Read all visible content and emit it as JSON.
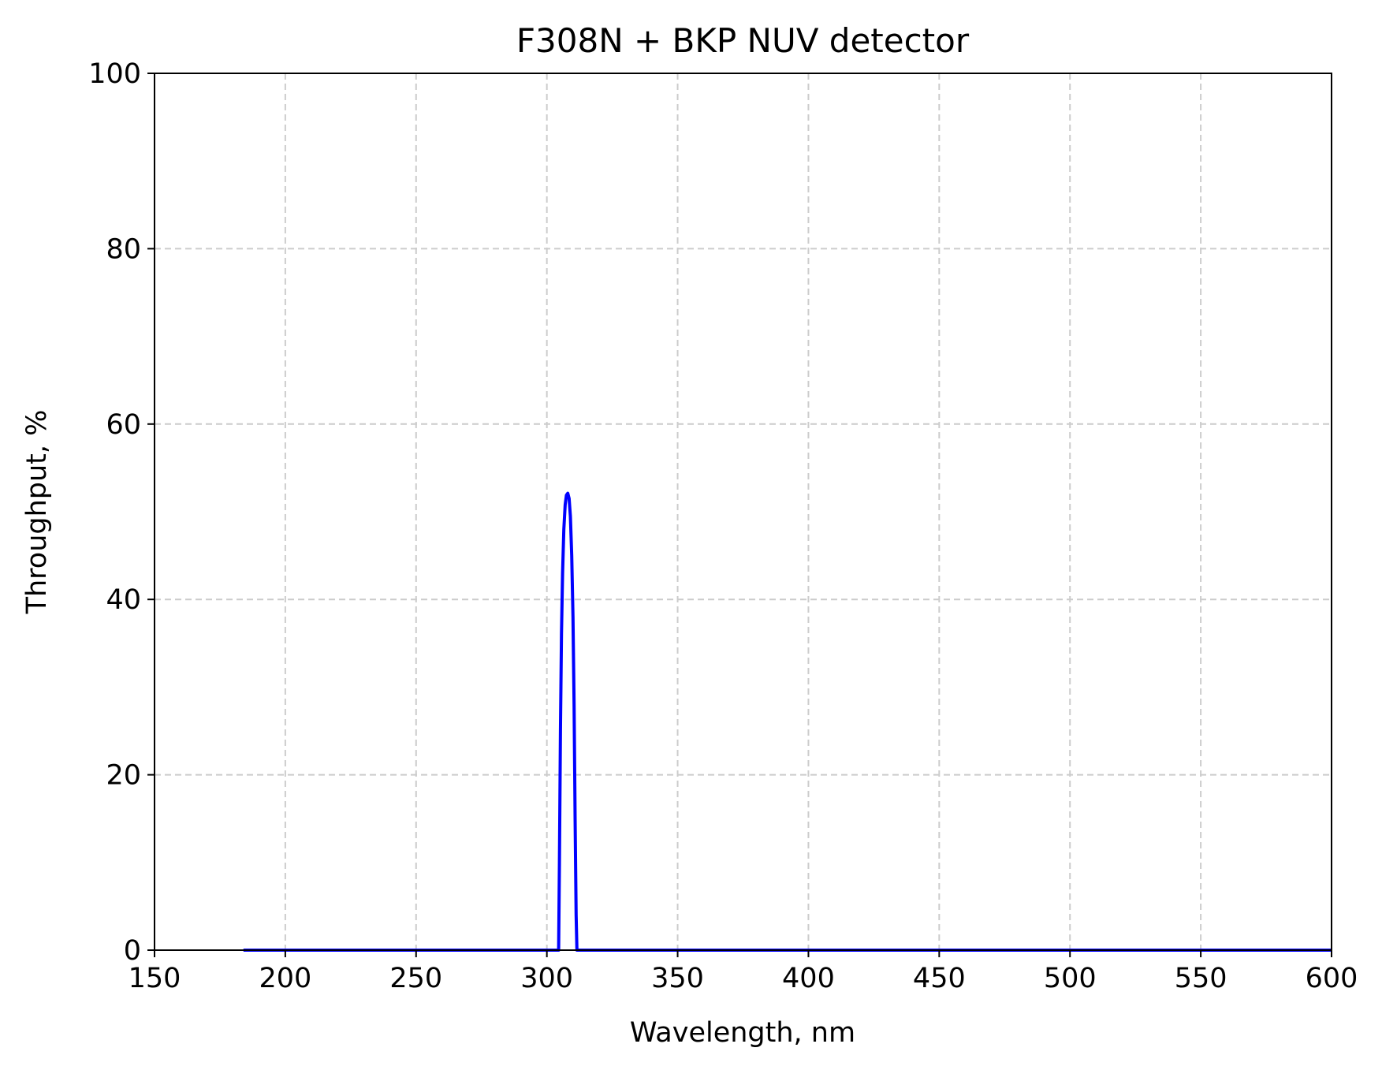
{
  "chart_data": {
    "type": "line",
    "title": "F308N + BKP NUV detector",
    "xlabel": "Wavelength, nm",
    "ylabel": "Throughput, %",
    "xlim": [
      150,
      600
    ],
    "ylim": [
      0,
      100
    ],
    "xticks": [
      "150",
      "200",
      "250",
      "300",
      "350",
      "400",
      "450",
      "500",
      "550",
      "600"
    ],
    "yticks": [
      "0",
      "20",
      "40",
      "60",
      "80",
      "100"
    ],
    "grid": true,
    "legend": "none",
    "series": [
      {
        "color": "#0000ff",
        "x": [
          184,
          300,
          304.5,
          304.8,
          305.2,
          305.6,
          306.0,
          306.5,
          307.0,
          307.5,
          308.0,
          308.5,
          309.0,
          309.5,
          310.0,
          310.4,
          310.8,
          311.2,
          311.5,
          320,
          600
        ],
        "y": [
          0,
          0,
          0,
          10,
          25,
          36,
          43,
          48,
          50.8,
          51.9,
          52.1,
          51.5,
          49.5,
          45,
          38,
          28,
          15,
          4,
          0,
          0,
          0
        ]
      }
    ]
  }
}
